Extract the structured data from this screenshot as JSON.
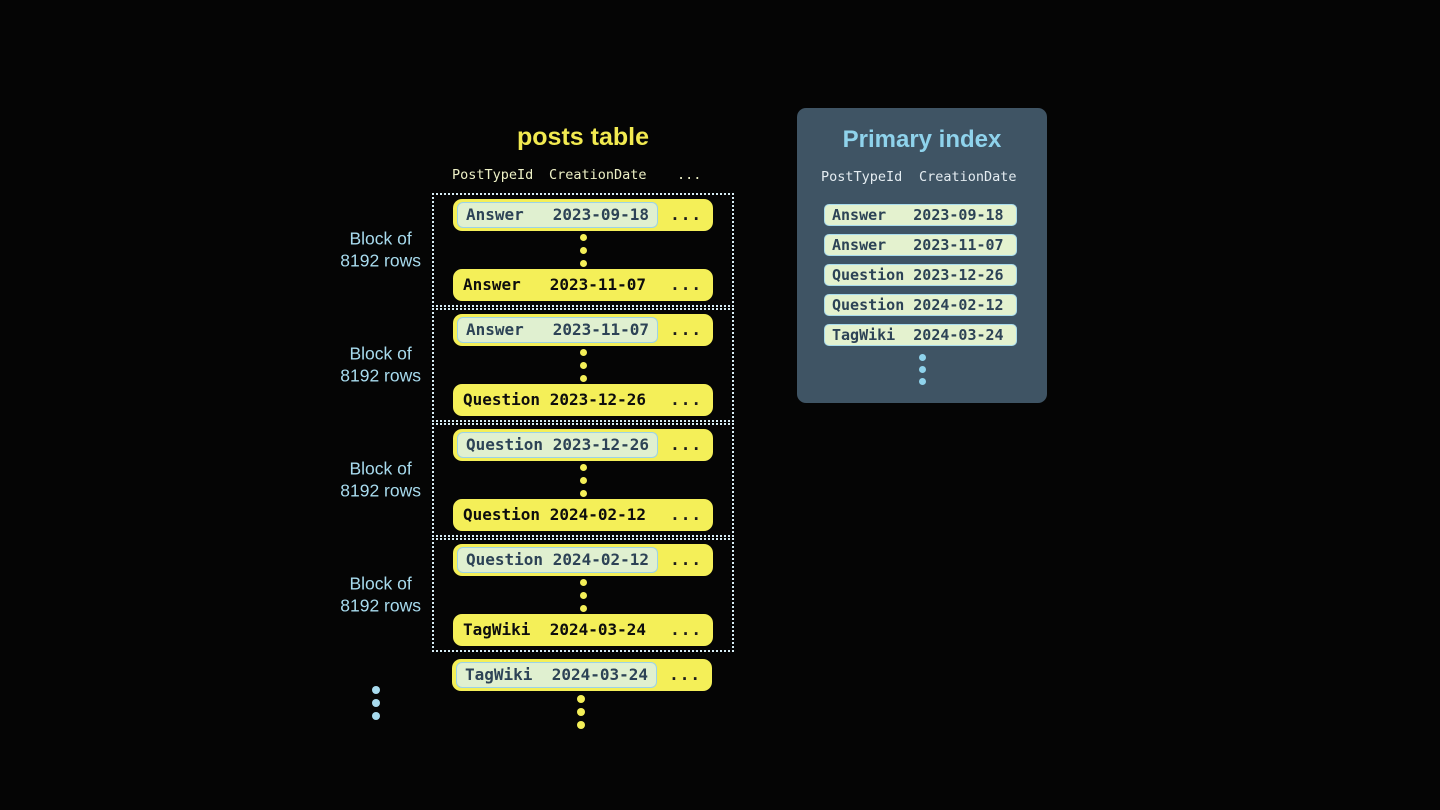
{
  "posts_table": {
    "title": "posts table",
    "columns": [
      "PostTypeId",
      "CreationDate",
      "..."
    ],
    "block_label": [
      "Block of",
      "8192 rows"
    ],
    "row_ellipsis": "...",
    "blocks": [
      {
        "first_row": {
          "post_type": "Answer",
          "creation_date": "2023-09-18"
        },
        "last_row": {
          "post_type": "Answer",
          "creation_date": "2023-11-07"
        }
      },
      {
        "first_row": {
          "post_type": "Answer",
          "creation_date": "2023-11-07"
        },
        "last_row": {
          "post_type": "Question",
          "creation_date": "2023-12-26"
        }
      },
      {
        "first_row": {
          "post_type": "Question",
          "creation_date": "2023-12-26"
        },
        "last_row": {
          "post_type": "Question",
          "creation_date": "2024-02-12"
        }
      },
      {
        "first_row": {
          "post_type": "Question",
          "creation_date": "2024-02-12"
        },
        "last_row": {
          "post_type": "TagWiki",
          "creation_date": "2024-03-24"
        }
      }
    ],
    "overflow_row": {
      "post_type": "TagWiki",
      "creation_date": "2024-03-24"
    }
  },
  "primary_index": {
    "title": "Primary index",
    "columns": [
      "PostTypeId",
      "CreationDate"
    ],
    "entries": [
      {
        "post_type": "Answer",
        "creation_date": "2023-09-18"
      },
      {
        "post_type": "Answer",
        "creation_date": "2023-11-07"
      },
      {
        "post_type": "Question",
        "creation_date": "2023-12-26"
      },
      {
        "post_type": "Question",
        "creation_date": "2024-02-12"
      },
      {
        "post_type": "TagWiki",
        "creation_date": "2024-03-24"
      }
    ]
  },
  "colors": {
    "background": "#050505",
    "row_yellow": "#f4ef58",
    "title_yellow": "#f2ea50",
    "header_pale_yellow": "#eef1c6",
    "label_blue": "#a8dbee",
    "panel_bg": "#3f5464",
    "panel_title_blue": "#8fd3ec",
    "panel_header_text": "#e4ecf1",
    "index_entry_green": "#e4f2cf",
    "index_entry_border": "#a9dcec",
    "highlight_green": "#e0f0d0",
    "highlight_border": "#9cd3e7",
    "dark_text": "#2d4356",
    "block_border": "#d7ecf4"
  }
}
